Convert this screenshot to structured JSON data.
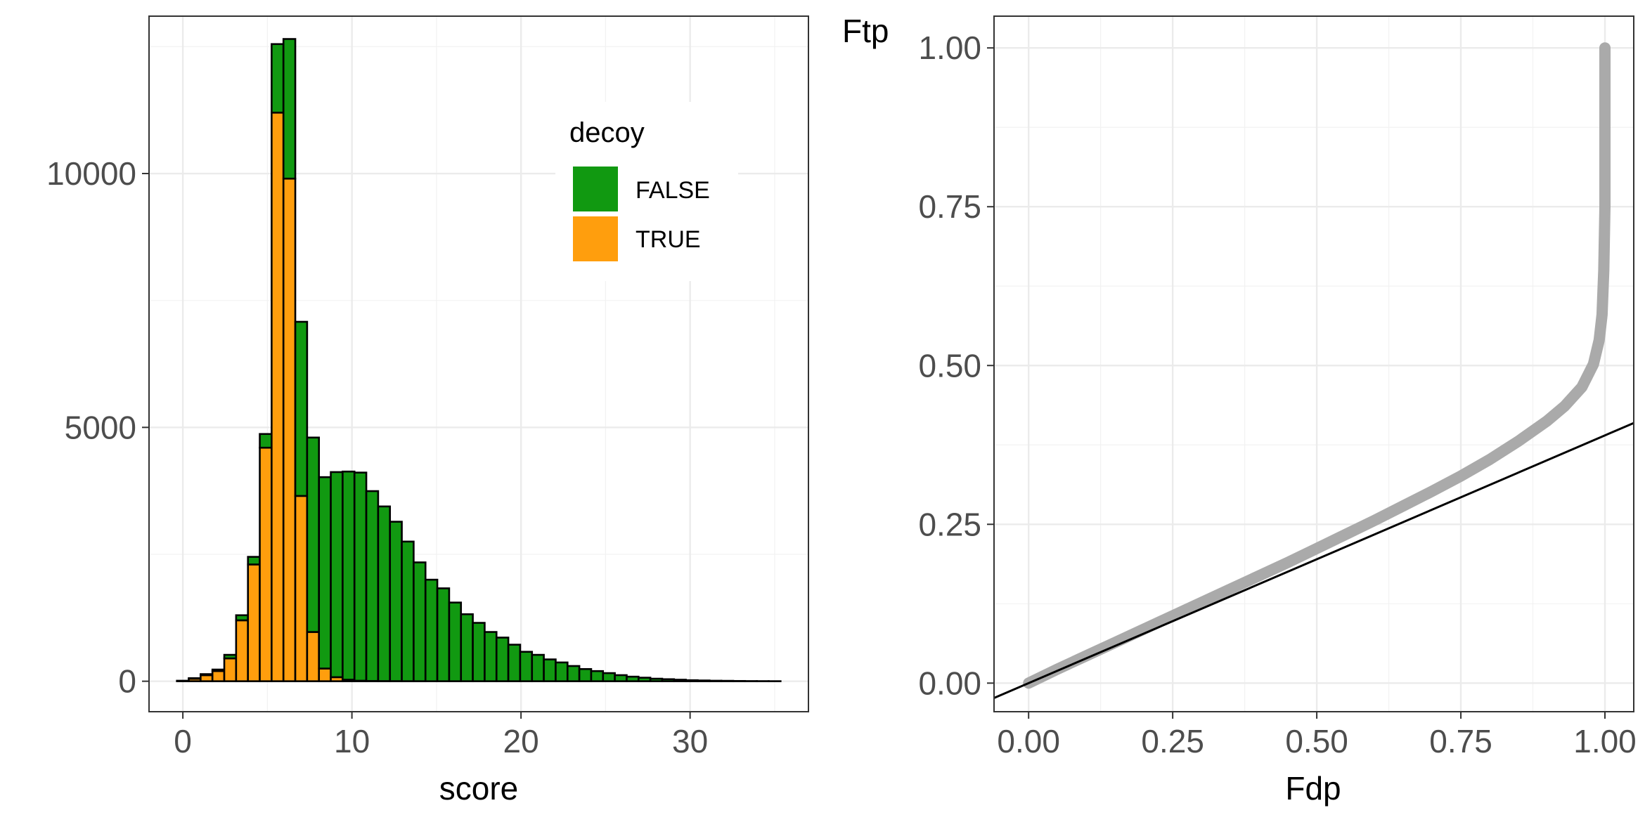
{
  "chart_data": [
    {
      "type": "bar",
      "stacked": true,
      "xlabel": "score",
      "ylabel": "",
      "xlim": [
        -2,
        37
      ],
      "ylim": [
        -600,
        13100
      ],
      "xticks": [
        "0",
        "10",
        "20",
        "30"
      ],
      "yticks": [
        "0",
        "5000",
        "10000"
      ],
      "grid": true,
      "legend": {
        "title": "decoy",
        "placement": "top-right",
        "entries": [
          {
            "label": "FALSE",
            "color": "#119911"
          },
          {
            "label": "TRUE",
            "color": "#FF9E0D"
          }
        ]
      },
      "bin_width": 0.7,
      "bin_centers": [
        0,
        0.7,
        1.4,
        2.1,
        2.8,
        3.5,
        4.2,
        4.9,
        5.6,
        6.3,
        7.0,
        7.7,
        8.4,
        9.1,
        9.8,
        10.5,
        11.2,
        11.9,
        12.6,
        13.3,
        14.0,
        14.7,
        15.4,
        16.1,
        16.8,
        17.5,
        18.2,
        18.9,
        19.6,
        20.3,
        21.0,
        21.7,
        22.4,
        23.1,
        23.8,
        24.5,
        25.2,
        25.9,
        26.6,
        27.3,
        28.0,
        28.7,
        29.4,
        30.1,
        30.8,
        31.5,
        32.2,
        32.9,
        33.6,
        34.3,
        35.0
      ],
      "series": [
        {
          "name": "TRUE",
          "color": "#FF9E0D",
          "values": [
            10,
            50,
            120,
            200,
            450,
            1200,
            2300,
            4600,
            11200,
            9900,
            3650,
            970,
            250,
            80,
            30,
            10,
            5,
            3,
            2,
            1,
            1,
            0,
            0,
            0,
            0,
            0,
            0,
            0,
            0,
            0,
            0,
            0,
            0,
            0,
            0,
            0,
            0,
            0,
            0,
            0,
            0,
            0,
            0,
            0,
            0,
            0,
            0,
            0,
            0,
            0,
            0
          ]
        },
        {
          "name": "FALSE",
          "color": "#119911",
          "values": [
            0,
            10,
            20,
            30,
            70,
            100,
            150,
            270,
            1350,
            2750,
            3430,
            3830,
            3770,
            4040,
            4100,
            4100,
            3740,
            3440,
            3140,
            2750,
            2340,
            2000,
            1830,
            1550,
            1320,
            1150,
            970,
            860,
            720,
            580,
            520,
            430,
            370,
            300,
            240,
            200,
            160,
            120,
            90,
            70,
            50,
            40,
            30,
            20,
            15,
            10,
            8,
            5,
            3,
            2,
            1
          ]
        }
      ]
    },
    {
      "type": "line",
      "xlabel": "Fdp",
      "ylabel": "Ftp",
      "xlim": [
        -0.06,
        1.05
      ],
      "ylim": [
        -0.045,
        1.05
      ],
      "xticks": [
        "0.00",
        "0.25",
        "0.50",
        "0.75",
        "1.00"
      ],
      "yticks": [
        "0.00",
        "0.25",
        "0.50",
        "0.75",
        "1.00"
      ],
      "grid": true,
      "series": [
        {
          "color": "#AAAAAA",
          "x": [
            0,
            0.05,
            0.1,
            0.15,
            0.2,
            0.25,
            0.3,
            0.35,
            0.4,
            0.45,
            0.5,
            0.55,
            0.6,
            0.65,
            0.7,
            0.75,
            0.8,
            0.85,
            0.9,
            0.93,
            0.96,
            0.98,
            0.99,
            0.995,
            0.998,
            1.0,
            1.0,
            1.0
          ],
          "y": [
            0,
            0.022,
            0.043,
            0.064,
            0.085,
            0.106,
            0.127,
            0.148,
            0.169,
            0.19,
            0.212,
            0.234,
            0.256,
            0.279,
            0.302,
            0.326,
            0.352,
            0.381,
            0.413,
            0.436,
            0.466,
            0.502,
            0.54,
            0.58,
            0.65,
            0.75,
            0.9,
            1.0
          ]
        },
        {
          "color": "#000000",
          "x": [
            -0.06,
            1.05
          ],
          "y": [
            -0.0234,
            0.4095
          ]
        }
      ]
    }
  ]
}
